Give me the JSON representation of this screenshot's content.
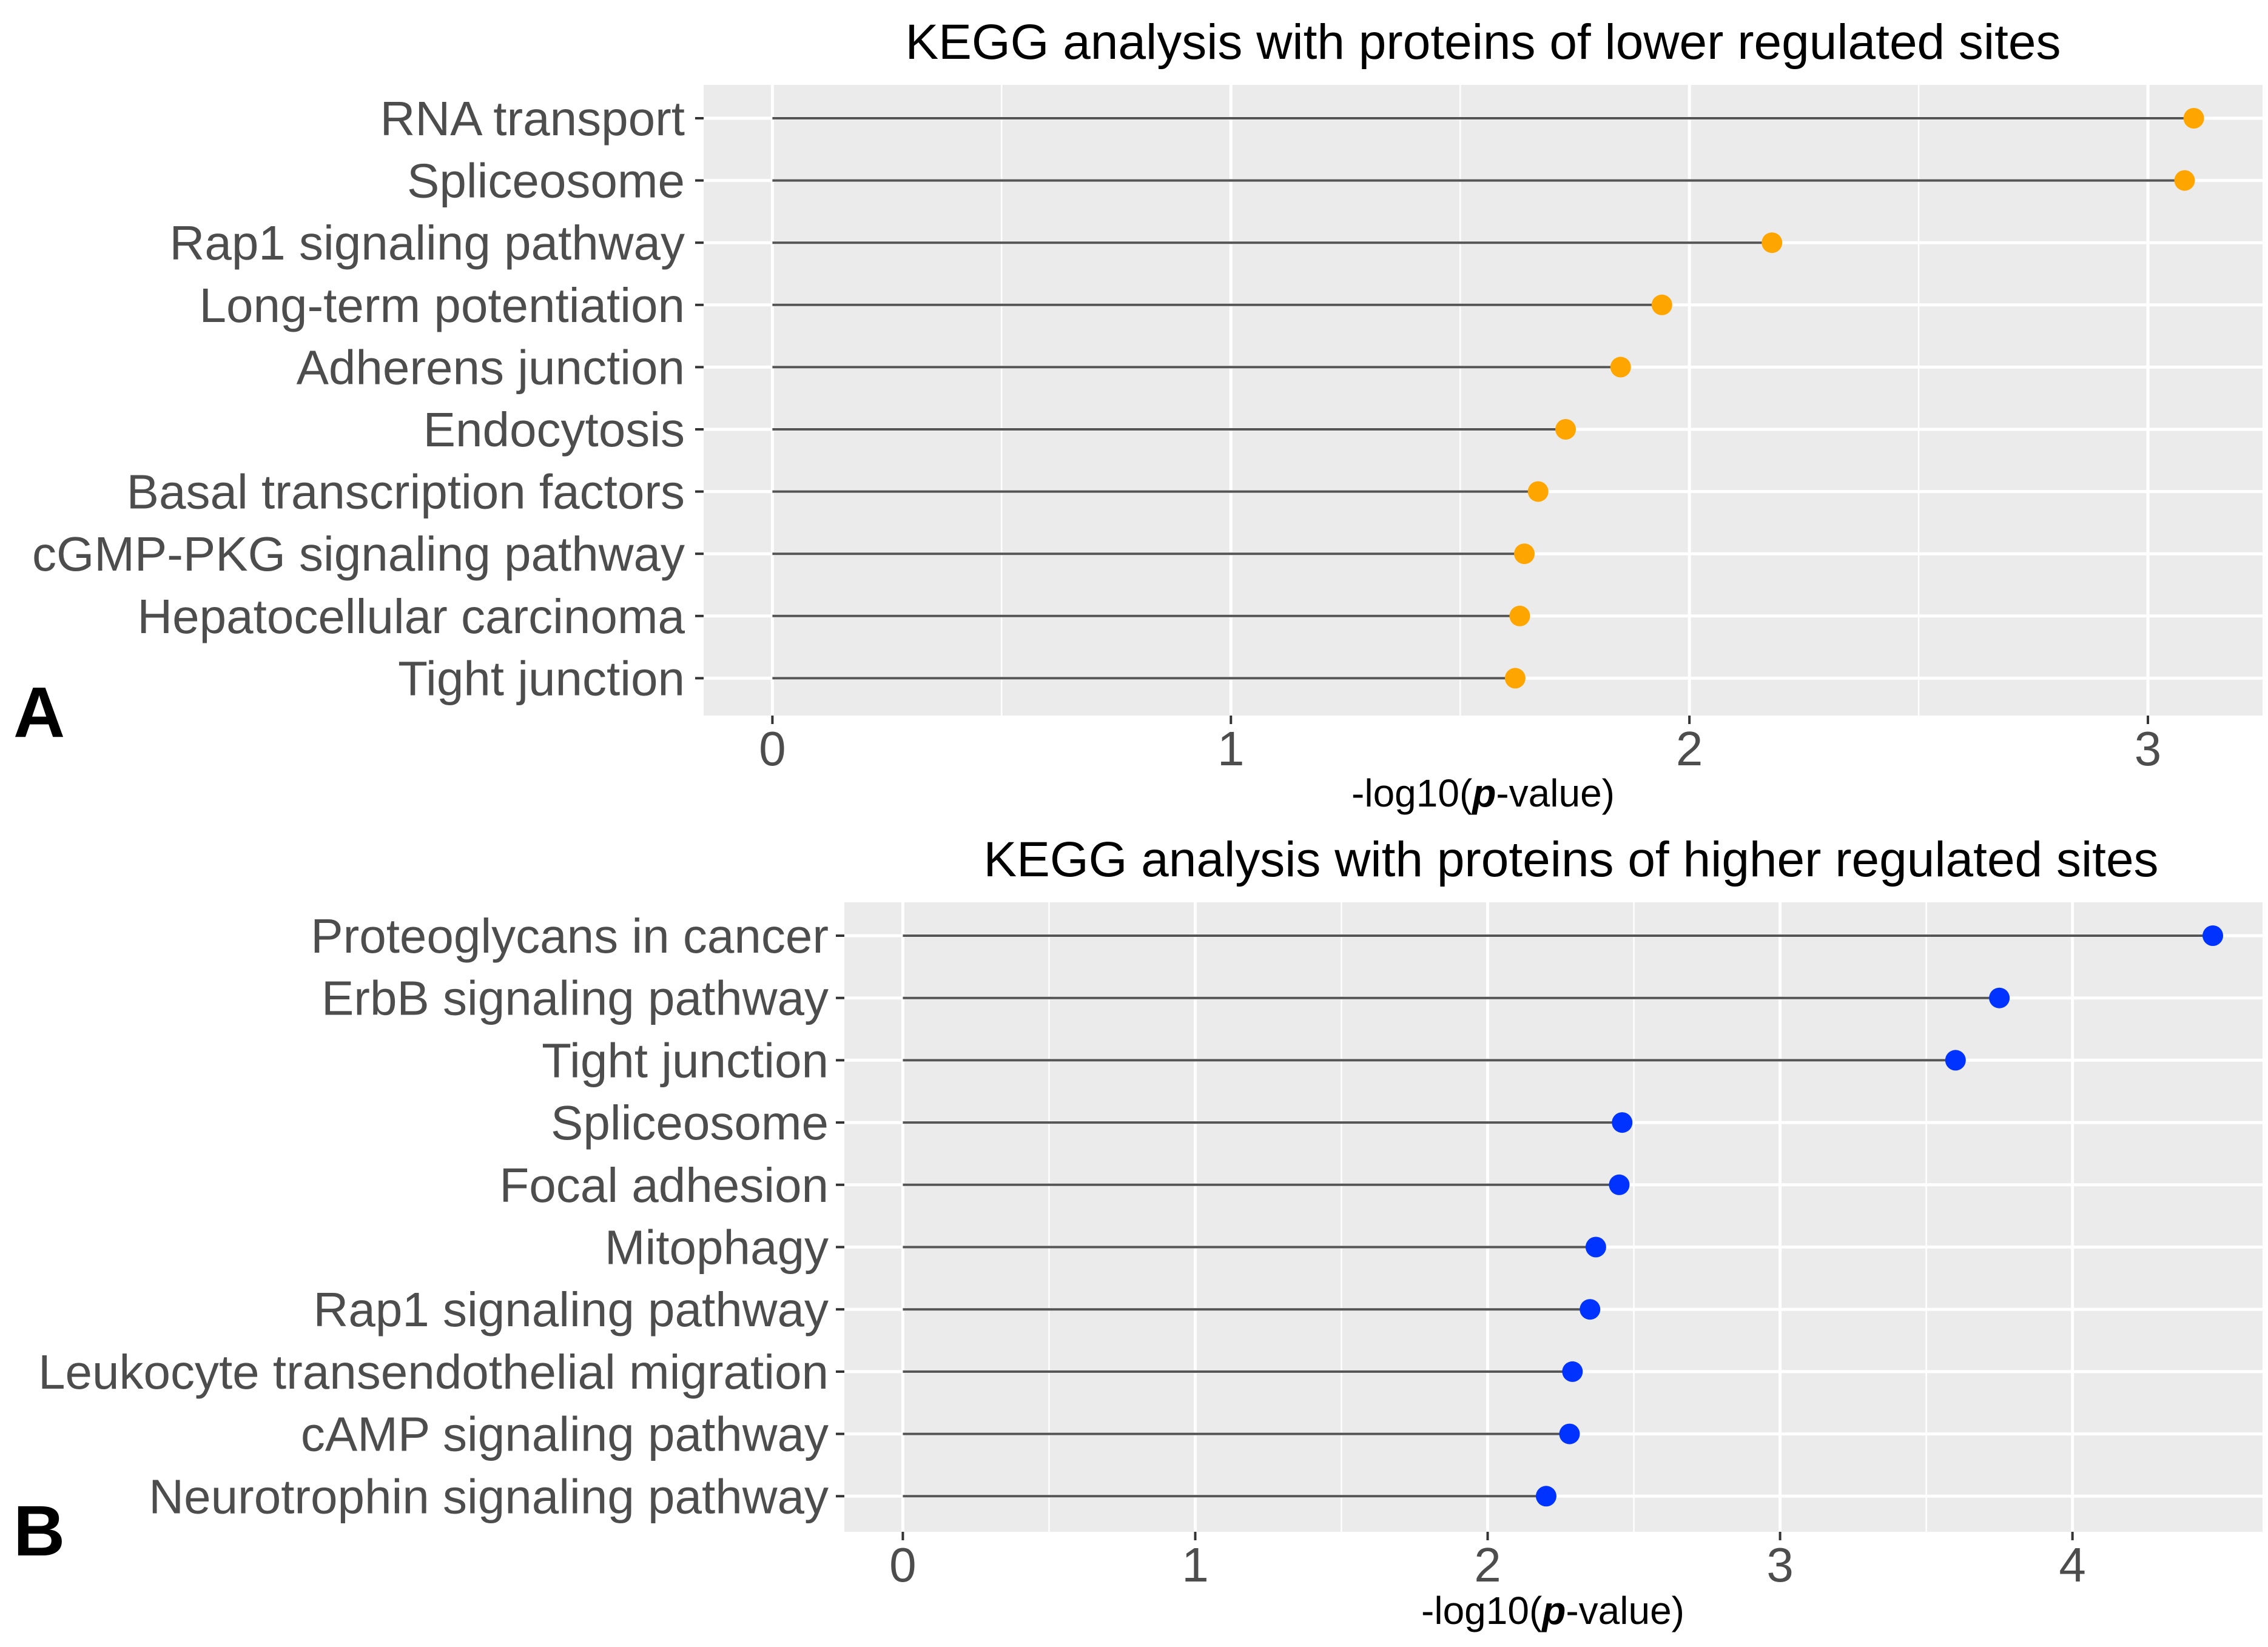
{
  "colors": {
    "panel_a_points": "#FFA500",
    "panel_b_points": "#0033FF"
  },
  "chart_data": [
    {
      "type": "lollipop",
      "panel": "A",
      "title": "KEGG analysis with proteins of lower regulated sites",
      "xlabel_prefix": "-log10(",
      "xlabel_italic": "p",
      "xlabel_suffix": "-value)",
      "xlim": [
        -0.15,
        3.25
      ],
      "xticks": [
        0,
        1,
        2,
        3
      ],
      "categories": [
        "RNA transport",
        "Spliceosome",
        "Rap1 signaling pathway",
        "Long-term potentiation",
        "Adherens junction",
        "Endocytosis",
        "Basal transcription factors",
        "cGMP-PKG signaling pathway",
        "Hepatocellular carcinoma",
        "Tight junction"
      ],
      "values": [
        3.1,
        3.08,
        2.18,
        1.94,
        1.85,
        1.73,
        1.67,
        1.64,
        1.63,
        1.62
      ]
    },
    {
      "type": "lollipop",
      "panel": "B",
      "title": "KEGG analysis with proteins of higher regulated sites",
      "xlabel_prefix": "-log10(",
      "xlabel_italic": "p",
      "xlabel_suffix": "-value)",
      "xlim": [
        -0.2,
        4.65
      ],
      "xticks": [
        0,
        1,
        2,
        3,
        4
      ],
      "categories": [
        "Proteoglycans in cancer",
        "ErbB signaling pathway",
        "Tight junction",
        "Spliceosome",
        "Focal adhesion",
        "Mitophagy",
        "Rap1 signaling pathway",
        "Leukocyte transendothelial migration",
        "cAMP signaling pathway",
        "Neurotrophin signaling pathway"
      ],
      "values": [
        4.48,
        3.75,
        3.6,
        2.46,
        2.45,
        2.37,
        2.35,
        2.29,
        2.28,
        2.2
      ]
    }
  ]
}
